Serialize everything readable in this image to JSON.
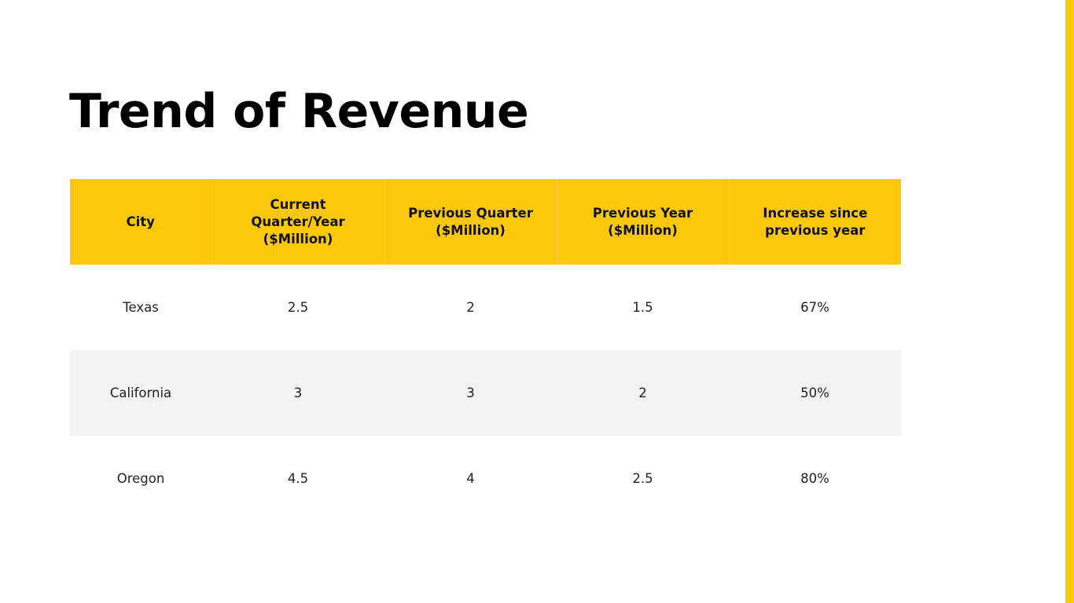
{
  "title": "Trend of Revenue",
  "accent_color": "#FDC70B",
  "table": {
    "headers": [
      "City",
      "Current Quarter/Year ($Million)",
      "Previous Quarter ($Million)",
      "Previous Year ($Million)",
      "Increase since previous year"
    ],
    "rows": [
      [
        "Texas",
        "2.5",
        "2",
        "1.5",
        "67%"
      ],
      [
        "California",
        "3",
        "3",
        "2",
        "50%"
      ],
      [
        "Oregon",
        "4.5",
        "4",
        "2.5",
        "80%"
      ]
    ]
  }
}
